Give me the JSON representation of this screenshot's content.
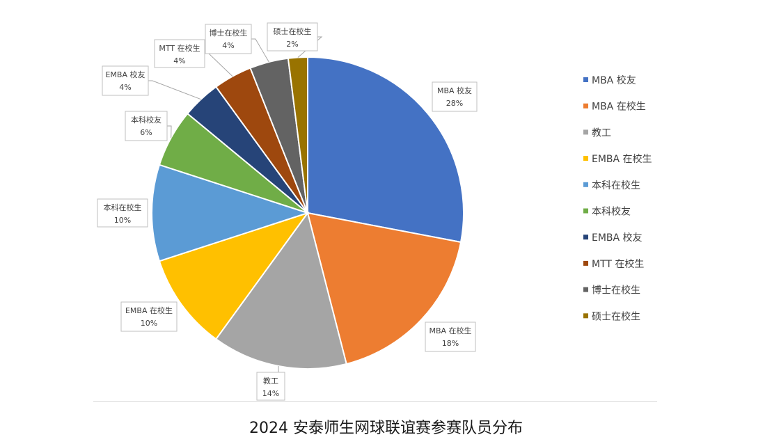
{
  "chart_data": {
    "type": "pie",
    "categories": [
      "MBA 校友",
      "MBA 在校生",
      "教工",
      "EMBA 在校生",
      "本科在校生",
      "本科校友",
      "EMBA 校友",
      "MTT 在校生",
      "博士在校生",
      "硕士在校生"
    ],
    "values": [
      28,
      18,
      14,
      10,
      10,
      6,
      4,
      4,
      4,
      2
    ],
    "data_labels": [
      "28%",
      "18%",
      "14%",
      "10%",
      "10%",
      "6%",
      "4%",
      "4%",
      "4%",
      "2%"
    ],
    "colors": [
      "#4472C4",
      "#ED7D31",
      "#A5A5A5",
      "#FFC000",
      "#5B9BD5",
      "#70AD47",
      "#264478",
      "#9E480E",
      "#636363",
      "#997300"
    ],
    "legend_position": "right"
  },
  "caption": "2024 安泰师生网球联谊赛参赛队员分布"
}
